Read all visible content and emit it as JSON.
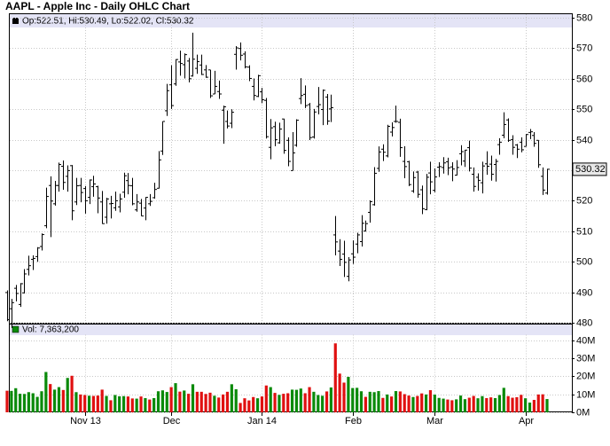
{
  "chart_data": [
    {
      "type": "ohlc",
      "title": "AAPL - Apple Inc - Daily OHLC Chart",
      "info": "Op:522.51, Hi:530.49, Lo:522.02, Cl:530.32",
      "categories": [
        null,
        null,
        null,
        null,
        null,
        null,
        null,
        null,
        null,
        null,
        null,
        null,
        null,
        null,
        null,
        null,
        null,
        null,
        "Nov 13",
        null,
        null,
        null,
        null,
        null,
        null,
        null,
        null,
        null,
        null,
        null,
        null,
        null,
        null,
        null,
        null,
        null,
        null,
        null,
        "Dec",
        null,
        null,
        null,
        null,
        null,
        null,
        null,
        null,
        null,
        null,
        null,
        null,
        null,
        null,
        null,
        null,
        null,
        null,
        null,
        null,
        "Jan 14",
        null,
        null,
        null,
        null,
        null,
        null,
        null,
        null,
        null,
        null,
        null,
        null,
        null,
        null,
        null,
        null,
        null,
        null,
        null,
        null,
        "Feb",
        null,
        null,
        null,
        null,
        null,
        null,
        null,
        null,
        null,
        null,
        null,
        null,
        null,
        null,
        null,
        null,
        null,
        null,
        "Mar",
        null,
        null,
        null,
        null,
        null,
        null,
        null,
        null,
        null,
        null,
        null,
        null,
        null,
        null,
        null,
        null,
        null,
        null,
        null,
        null,
        "Apr",
        null,
        null,
        null,
        null,
        null
      ],
      "open": [
        489.9,
        484.6,
        491.3,
        486.0,
        489.8,
        497.5,
        500.8,
        501.7,
        505.0,
        511.8,
        525.0,
        519.0,
        525.0,
        531.3,
        528.0,
        531.5,
        519.6,
        525.0,
        524.0,
        521.1,
        524.6,
        524.6,
        519.6,
        514.6,
        519.0,
        517.7,
        518.0,
        522.8,
        526.6,
        524.9,
        517.0,
        519.2,
        517.6,
        519.0,
        521.0,
        524.1,
        536.3,
        549.5,
        558.0,
        558.3,
        565.5,
        564.6,
        565.8,
        560.9,
        563.4,
        564.5,
        562.9,
        562.9,
        555.0,
        555.8,
        549.7,
        546.0,
        545.4,
        568.0,
        569.9,
        568.1,
        563.8,
        557.5,
        554.2,
        555.7,
        552.9,
        537.5,
        544.3,
        539.0,
        546.8,
        539.8,
        529.9,
        538.2,
        553.5,
        554.9,
        551.5,
        540.9,
        550.9,
        549.9,
        554.0,
        550.1,
        508.8,
        503.5,
        502.5,
        495.2,
        502.6,
        505.8,
        506.6,
        510.1,
        516.2,
        518.7,
        530.6,
        536.9,
        534.7,
        542.5,
        546.0,
        545.7,
        532.9,
        532.8,
        523.2,
        529.4,
        523.6,
        517.1,
        529.1,
        523.4,
        531.0,
        530.9,
        532.8,
        531.1,
        528.4,
        535.4,
        533.0,
        537.4,
        528.7,
        527.7,
        525.9,
        532.1,
        532.0,
        531.9,
        538.4,
        541.5,
        546.5,
        540.0,
        538.3,
        539.2,
        537.8,
        542.4,
        541.4,
        539.8,
        528.0,
        522.51
      ],
      "high": [
        490.6,
        487.8,
        492.4,
        493.0,
        497.6,
        502.0,
        502.1,
        504.8,
        509.3,
        524.3,
        528.0,
        526.5,
        532.5,
        533.2,
        531.6,
        531.7,
        527.5,
        527.5,
        524.8,
        527.0,
        528.2,
        524.9,
        523.2,
        521.0,
        521.6,
        523.0,
        522.3,
        529.2,
        529.1,
        527.5,
        522.2,
        520.6,
        521.2,
        522.2,
        525.9,
        536.3,
        546.0,
        558.3,
        564.4,
        566.4,
        569.2,
        568.3,
        566.8,
        575.1,
        567.9,
        567.9,
        564.5,
        562.9,
        562.6,
        559.4,
        551.2,
        549.6,
        550.0,
        570.7,
        571.9,
        569.0,
        564.4,
        560.1,
        561.3,
        557.0,
        553.7,
        546.8,
        545.9,
        545.6,
        546.9,
        540.8,
        542.5,
        546.7,
        560.2,
        557.8,
        552.1,
        550.1,
        557.3,
        556.5,
        555.0,
        554.8,
        515.0,
        507.4,
        506.9,
        501.5,
        507.0,
        509.5,
        515.3,
        513.5,
        520.1,
        531.0,
        537.8,
        538.5,
        544.9,
        545.7,
        551.2,
        546.9,
        537.9,
        533.1,
        529.6,
        529.8,
        525.0,
        528.8,
        532.8,
        530.6,
        532.6,
        534.3,
        534.1,
        532.6,
        533.3,
        538.2,
        536.7,
        539.7,
        530.9,
        529.0,
        532.8,
        536.2,
        534.8,
        533.7,
        540.5,
        549.0,
        547.0,
        541.5,
        538.6,
        540.8,
        541.9,
        543.5,
        542.5,
        539.8,
        530.9,
        530.49
      ],
      "low": [
        480.5,
        478.3,
        487.0,
        485.2,
        489.6,
        495.5,
        497.3,
        500.0,
        503.7,
        511.0,
        508.1,
        518.4,
        523.0,
        523.6,
        523.0,
        513.6,
        518.6,
        519.5,
        515.8,
        518.9,
        521.3,
        515.9,
        512.4,
        512.5,
        514.2,
        516.7,
        516.2,
        521.0,
        522.1,
        518.5,
        516.4,
        515.0,
        513.6,
        518.3,
        520.7,
        524.0,
        535.0,
        547.8,
        550.1,
        557.7,
        561.0,
        560.1,
        558.8,
        560.7,
        561.6,
        561.2,
        560.3,
        553.7,
        555.0,
        553.4,
        538.7,
        543.7,
        543.8,
        563.0,
        566.0,
        563.4,
        559.2,
        552.9,
        554.0,
        552.0,
        540.4,
        533.6,
        537.9,
        538.7,
        535.4,
        531.3,
        529.9,
        537.7,
        551.7,
        550.4,
        539.9,
        540.4,
        548.3,
        544.8,
        544.9,
        545.8,
        502.1,
        498.6,
        495.0,
        493.6,
        499.3,
        502.8,
        505.0,
        509.9,
        512.8,
        518.4,
        529.5,
        533.0,
        534.2,
        541.1,
        545.6,
        534.4,
        527.4,
        524.8,
        522.6,
        521.0,
        515.6,
        516.9,
        522.1,
        522.8,
        527.8,
        528.9,
        528.4,
        526.4,
        528.3,
        531.6,
        531.1,
        529.6,
        523.0,
        523.3,
        522.4,
        528.5,
        526.6,
        526.3,
        535.1,
        540.5,
        539.3,
        535.1,
        534.0,
        535.9,
        537.8,
        540.2,
        537.7,
        530.8,
        521.9,
        522.02
      ],
      "close": [
        481.0,
        486.6,
        489.6,
        492.8,
        496.0,
        498.7,
        501.1,
        504.5,
        508.9,
        521.4,
        519.9,
        525.0,
        531.9,
        526.0,
        529.9,
        516.7,
        524.9,
        522.7,
        520.0,
        526.8,
        525.5,
        520.9,
        512.5,
        520.6,
        519.1,
        520.0,
        520.6,
        528.2,
        525.0,
        519.0,
        519.6,
        515.0,
        521.1,
        519.8,
        523.7,
        533.4,
        546.0,
        556.1,
        551.2,
        566.3,
        565.0,
        567.9,
        560.0,
        566.4,
        565.6,
        561.4,
        560.5,
        554.4,
        557.5,
        555.0,
        550.8,
        544.5,
        549.0,
        570.1,
        567.7,
        563.9,
        560.1,
        554.5,
        561.0,
        553.1,
        541.0,
        543.9,
        540.0,
        543.5,
        536.5,
        532.9,
        535.7,
        546.4,
        554.5,
        551.2,
        540.7,
        549.1,
        551.5,
        556.2,
        546.1,
        550.5,
        506.5,
        500.8,
        499.8,
        500.6,
        501.5,
        508.8,
        512.6,
        512.5,
        519.7,
        529.0,
        536.0,
        535.9,
        544.4,
        544.0,
        546.0,
        537.4,
        531.2,
        525.3,
        527.6,
        522.1,
        517.4,
        527.7,
        526.2,
        527.8,
        531.2,
        532.4,
        530.8,
        530.4,
        530.9,
        536.1,
        536.6,
        530.7,
        524.7,
        526.7,
        531.4,
        531.3,
        528.7,
        532.9,
        539.2,
        545.0,
        539.8,
        537.5,
        536.9,
        536.7,
        541.7,
        542.6,
        538.8,
        531.8,
        523.5,
        530.32
      ],
      "color": "#000000",
      "ylim": [
        480,
        580
      ],
      "yticks": [
        480,
        490,
        500,
        510,
        520,
        530,
        540,
        550,
        560,
        570,
        580
      ],
      "grid": true
    },
    {
      "type": "bar",
      "info": "Vol: 7,363,200",
      "values": [
        12.0,
        11.9,
        13.4,
        10.3,
        10.2,
        11.2,
        10.6,
        8.6,
        11.7,
        22.4,
        15.7,
        12.6,
        14.0,
        12.4,
        19.1,
        20.3,
        11.2,
        9.9,
        9.6,
        9.2,
        9.1,
        9.3,
        12.6,
        9.1,
        6.7,
        9.6,
        8.9,
        9.0,
        8.8,
        7.7,
        7.6,
        8.8,
        7.9,
        7.1,
        7.9,
        11.7,
        12.2,
        11.3,
        14.0,
        16.2,
        11.5,
        12.1,
        10.3,
        15.6,
        11.4,
        11.4,
        10.2,
        10.9,
        9.2,
        8.2,
        9.9,
        11.4,
        15.6,
        12.8,
        5.2,
        7.8,
        6.6,
        8.5,
        7.8,
        8.8,
        14.9,
        14.0,
        10.8,
        9.7,
        10.3,
        10.6,
        12.6,
        12.5,
        13.2,
        10.6,
        14.0,
        11.4,
        9.6,
        9.2,
        11.6,
        13.8,
        38.3,
        21.5,
        16.5,
        19.7,
        13.5,
        13.6,
        11.7,
        8.6,
        11.4,
        11.2,
        11.8,
        8.0,
        9.9,
        8.8,
        11.8,
        11.6,
        10.1,
        9.3,
        8.5,
        9.1,
        10.5,
        9.9,
        12.3,
        9.8,
        8.0,
        7.6,
        7.1,
        6.7,
        7.2,
        9.3,
        7.3,
        8.1,
        9.1,
        7.8,
        9.0,
        7.9,
        8.3,
        7.9,
        9.6,
        13.6,
        9.0,
        8.1,
        8.4,
        9.7,
        7.8,
        5.4,
        6.9,
        9.9,
        10.0,
        7.3632
      ],
      "up_color": "#0a8a0a",
      "down_color": "#e01010",
      "ylim": [
        0,
        50
      ],
      "yticks": [
        {
          "value": 0,
          "label": "0M"
        },
        {
          "value": 10,
          "label": "10M"
        },
        {
          "value": 20,
          "label": "20M"
        },
        {
          "value": 30,
          "label": "30M"
        },
        {
          "value": 40,
          "label": "40M"
        }
      ],
      "grid": true
    }
  ]
}
